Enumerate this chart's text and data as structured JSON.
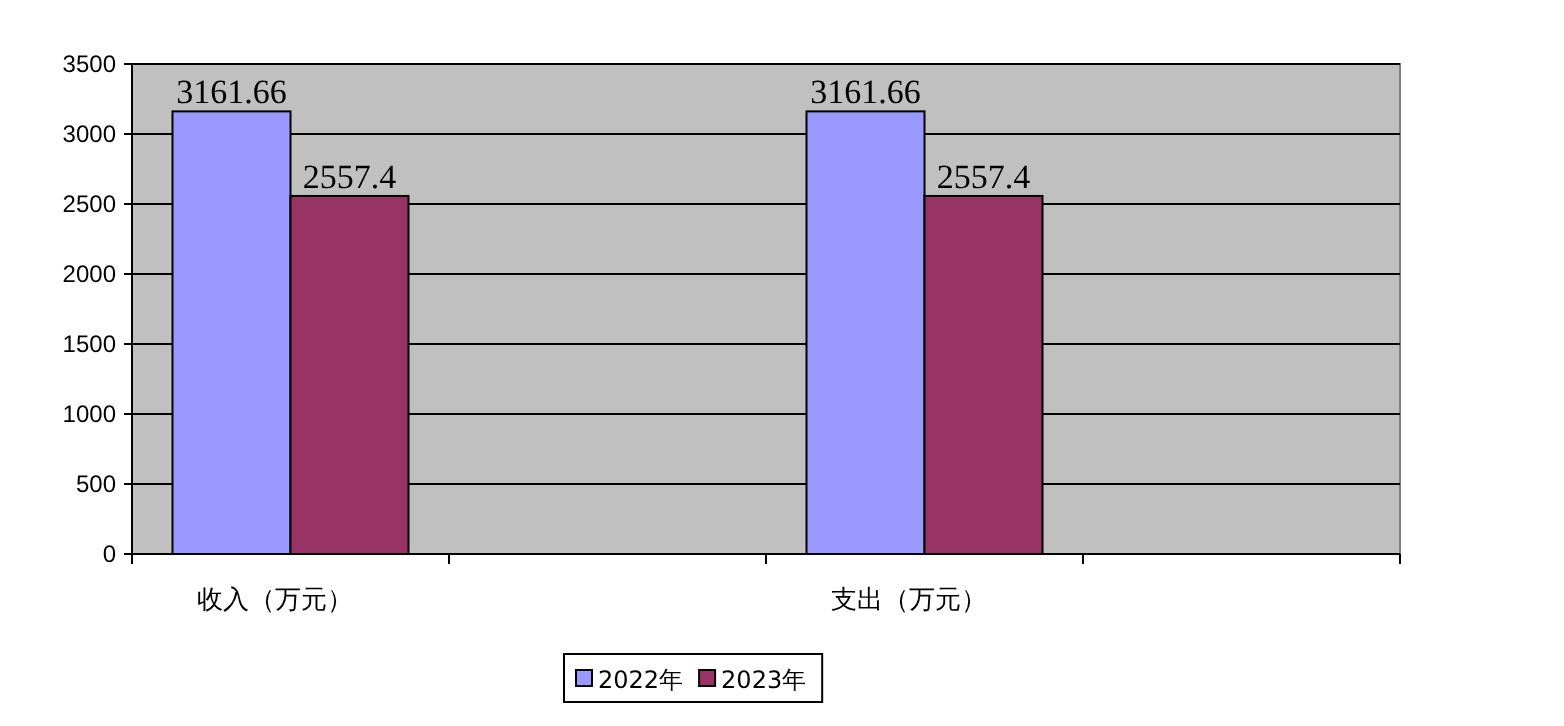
{
  "chart_data": {
    "type": "bar",
    "categories": [
      "收入（万元）",
      null,
      "支出（万元）",
      null
    ],
    "series": [
      {
        "name": "2022年",
        "color": "#9999ff",
        "values": [
          3161.66,
          null,
          3161.66,
          null
        ]
      },
      {
        "name": "2023年",
        "color": "#993366",
        "values": [
          2557.4,
          null,
          2557.4,
          null
        ]
      }
    ],
    "ylim": [
      0,
      3500
    ],
    "yticks": [
      0,
      500,
      1000,
      1500,
      2000,
      2500,
      3000,
      3500
    ],
    "grid": "y",
    "legend": "bottom",
    "data_labels": true
  }
}
